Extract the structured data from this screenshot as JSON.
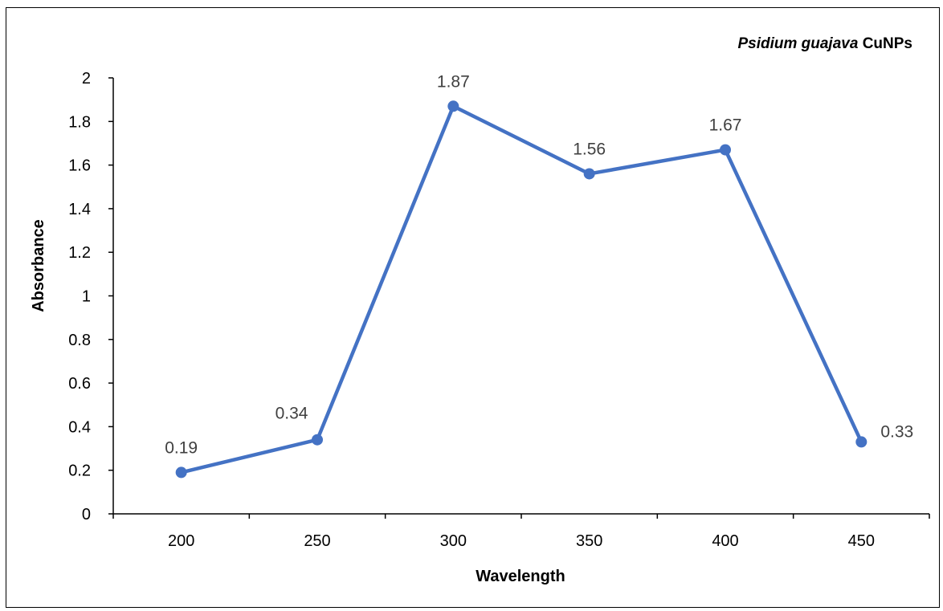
{
  "chart_data": {
    "type": "line",
    "title_italic": "Psidium guajava",
    "title_rest": " CuNPs",
    "xlabel": "Wavelength",
    "ylabel": "Absorbance",
    "categories": [
      "200",
      "250",
      "300",
      "350",
      "400",
      "450"
    ],
    "values": [
      0.19,
      0.34,
      1.87,
      1.56,
      1.67,
      0.33
    ],
    "data_labels": [
      "0.19",
      "0.34",
      "1.87",
      "1.56",
      "1.67",
      "0.33"
    ],
    "ylim": [
      0,
      2
    ],
    "yticks": [
      "0",
      "0.2",
      "0.4",
      "0.6",
      "0.8",
      "1",
      "1.2",
      "1.4",
      "1.6",
      "1.8",
      "2"
    ],
    "grid": false,
    "legend": "none",
    "series_color": "#4472C4"
  }
}
